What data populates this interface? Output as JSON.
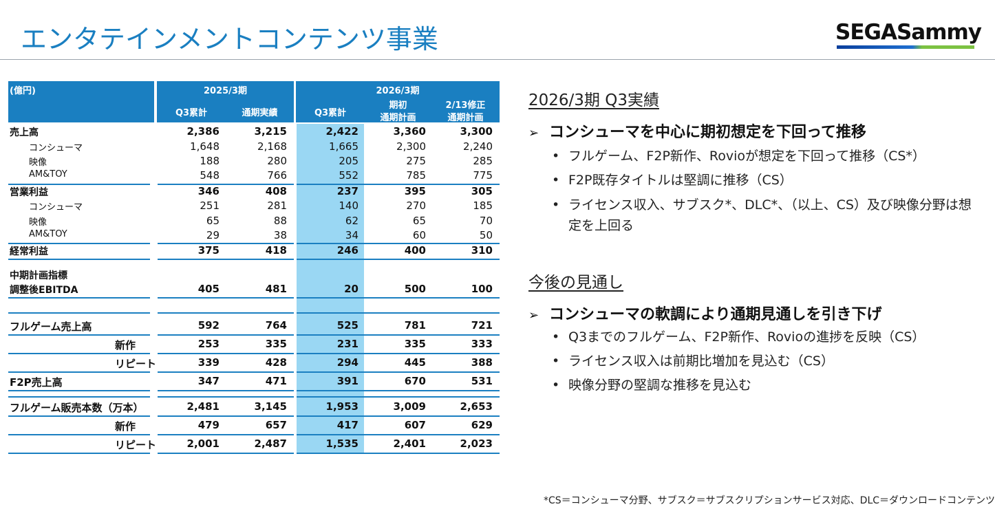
{
  "title": "エンタテインメントコンテンツ事業",
  "logo": {
    "text": "SEGASammy"
  },
  "table": {
    "unit": "(億円)",
    "period_a": "2025/3期",
    "period_b": "2026/3期",
    "cols": [
      "Q3累計",
      "通期実績",
      "Q3累計",
      "期初\n通期計画",
      "2/13修正\n通期計画"
    ],
    "col_b2_l1": "期初",
    "col_b2_l2": "通期計画",
    "col_b3_l1": "2/13修正",
    "col_b3_l2": "通期計画",
    "rows": [
      {
        "label": "売上高",
        "v": [
          "2,386",
          "3,215",
          "2,422",
          "3,360",
          "3,300"
        ]
      },
      {
        "label": "コンシューマ",
        "v": [
          "1,648",
          "2,168",
          "1,665",
          "2,300",
          "2,240"
        ]
      },
      {
        "label": "映像",
        "v": [
          "188",
          "280",
          "205",
          "275",
          "285"
        ]
      },
      {
        "label": "AM&TOY",
        "v": [
          "548",
          "766",
          "552",
          "785",
          "775"
        ]
      },
      {
        "label": "営業利益",
        "v": [
          "346",
          "408",
          "237",
          "395",
          "305"
        ]
      },
      {
        "label": "コンシューマ",
        "v": [
          "251",
          "281",
          "140",
          "270",
          "185"
        ]
      },
      {
        "label": "映像",
        "v": [
          "65",
          "88",
          "62",
          "65",
          "70"
        ]
      },
      {
        "label": "AM&TOY",
        "v": [
          "29",
          "38",
          "34",
          "60",
          "50"
        ]
      },
      {
        "label": "経常利益",
        "v": [
          "375",
          "418",
          "246",
          "400",
          "310"
        ]
      },
      {
        "label": "中期計画指標",
        "v": [
          "",
          "",
          "",
          "",
          ""
        ]
      },
      {
        "label": "調整後EBITDA",
        "v": [
          "405",
          "481",
          "20",
          "500",
          "100"
        ]
      },
      {
        "label": "フルゲーム売上高",
        "v": [
          "592",
          "764",
          "525",
          "781",
          "721"
        ]
      },
      {
        "label": "新作",
        "v": [
          "253",
          "335",
          "231",
          "335",
          "333"
        ]
      },
      {
        "label": "リピート",
        "v": [
          "339",
          "428",
          "294",
          "445",
          "388"
        ]
      },
      {
        "label": "F2P売上高",
        "v": [
          "347",
          "471",
          "391",
          "670",
          "531"
        ]
      },
      {
        "label": "フルゲーム販売本数（万本）",
        "v": [
          "2,481",
          "3,145",
          "1,953",
          "3,009",
          "2,653"
        ]
      },
      {
        "label": "新作",
        "v": [
          "479",
          "657",
          "417",
          "607",
          "629"
        ]
      },
      {
        "label": "リピート",
        "v": [
          "2,001",
          "2,487",
          "1,535",
          "2,401",
          "2,023"
        ]
      }
    ]
  },
  "panel": {
    "sec1": "2026/3期 Q3実績",
    "head1": "コンシューマを中心に期初想定を下回って推移",
    "b1": [
      "フルゲーム、F2P新作、Rovioが想定を下回って推移（CS*）",
      "F2P既存タイトルは堅調に推移（CS）",
      "ライセンス収入、サブスク*、DLC*、（以上、CS）及び映像分野は想定を上回る"
    ],
    "sec2": "今後の見通し",
    "head2": "コンシューマの軟調により通期見通しを引き下げ",
    "b2": [
      "Q3までのフルゲーム、F2P新作、Rovioの進捗を反映（CS）",
      "ライセンス収入は前期比増加を見込む（CS）",
      "映像分野の堅調な推移を見込む"
    ],
    "arrow": "➢",
    "dot": "•"
  },
  "footnote": "*CS＝コンシューマ分野、サブスク＝サブスクリプションサービス対応、DLC＝ダウンロードコンテンツ",
  "colors": {
    "accent": "#1a7fc1",
    "highlight": "#9ad7f3"
  }
}
